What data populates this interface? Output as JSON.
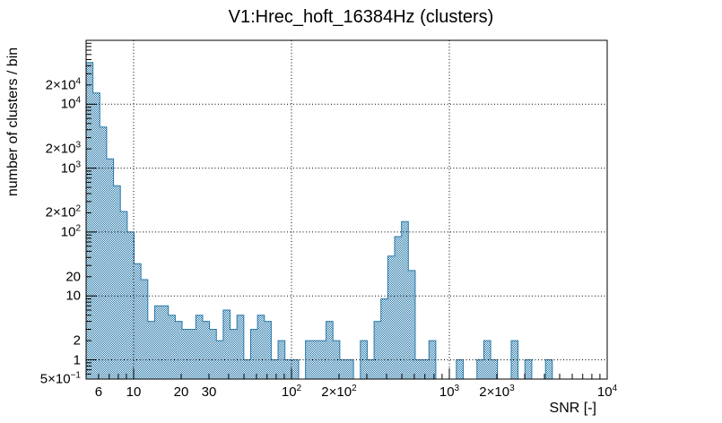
{
  "page": {
    "background": "#ffffff"
  },
  "chart_data": {
    "type": "bar",
    "title": "V1:Hrec_hoft_16384Hz (clusters)",
    "xlabel": "SNR [-]",
    "ylabel": "number of clusters / bin",
    "x_scale": "log",
    "y_scale": "log",
    "x_range": [
      5,
      10000
    ],
    "y_range": [
      0.5,
      100000
    ],
    "grid": "dotted black lines at decade positions, both axes",
    "legend": "none",
    "histogram_color": "#2879a9",
    "fill_pattern": "fine 1px checker hatch of histogram_color on white",
    "x_tick_labels": [
      {
        "v": 6,
        "label": "6"
      },
      {
        "v": 10,
        "label": "10"
      },
      {
        "v": 20,
        "label": "20"
      },
      {
        "v": 30,
        "label": "30"
      },
      {
        "v": 100,
        "label": "10^2"
      },
      {
        "v": 200,
        "label": "2×10^2"
      },
      {
        "v": 1000,
        "label": "10^3"
      },
      {
        "v": 2000,
        "label": "2×10^3"
      },
      {
        "v": 10000,
        "label": "10^4"
      }
    ],
    "y_tick_labels": [
      {
        "v": 0.5,
        "label": "5×10^−1"
      },
      {
        "v": 1,
        "label": "1"
      },
      {
        "v": 2,
        "label": "2"
      },
      {
        "v": 10,
        "label": "10"
      },
      {
        "v": 20,
        "label": "20"
      },
      {
        "v": 100,
        "label": "10^2"
      },
      {
        "v": 200,
        "label": "2×10^2"
      },
      {
        "v": 1000,
        "label": "10^3"
      },
      {
        "v": 2000,
        "label": "2×10^3"
      },
      {
        "v": 10000,
        "label": "10^4"
      },
      {
        "v": 20000,
        "label": "2×10^4"
      }
    ],
    "bins": {
      "snr_min": 5,
      "snr_max": 10000,
      "n_bins": 76,
      "spacing": "log-uniform",
      "counts": [
        45000,
        15000,
        4400,
        1400,
        530,
        210,
        100,
        32,
        18,
        4,
        7,
        7,
        5,
        4,
        3,
        3,
        5,
        4,
        3,
        2,
        6,
        3,
        5,
        1,
        3,
        5,
        4,
        1,
        2,
        1,
        1,
        0,
        2,
        2,
        2,
        4,
        2,
        1,
        1,
        0,
        2,
        1,
        4,
        9,
        42,
        85,
        146,
        25,
        1,
        1,
        2,
        0,
        0,
        0,
        1,
        0,
        0,
        1,
        2,
        1,
        0,
        0,
        2,
        0,
        1,
        0,
        0,
        1,
        0,
        0,
        0,
        0,
        0,
        0,
        0,
        0
      ]
    }
  }
}
